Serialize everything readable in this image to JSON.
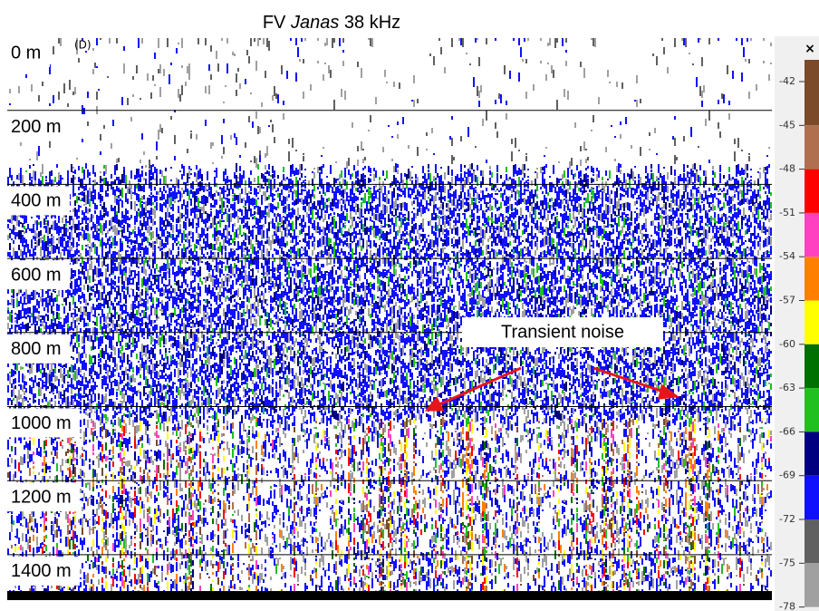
{
  "title": {
    "prefix": "FV",
    "italic": "Janas",
    "suffix": "38 kHz"
  },
  "depth_labels": [
    "0 m",
    "200 m",
    "400 m",
    "600 m",
    "800 m",
    "1000 m",
    "1200 m",
    "1400 m"
  ],
  "depth_marker": "(D)",
  "colorbar": {
    "close": "×",
    "ticks": [
      -42,
      -45,
      -48,
      -51,
      -54,
      -57,
      -60,
      -63,
      -66,
      -69,
      -72,
      -75,
      -78
    ]
  },
  "annotation": "Transient noise"
}
